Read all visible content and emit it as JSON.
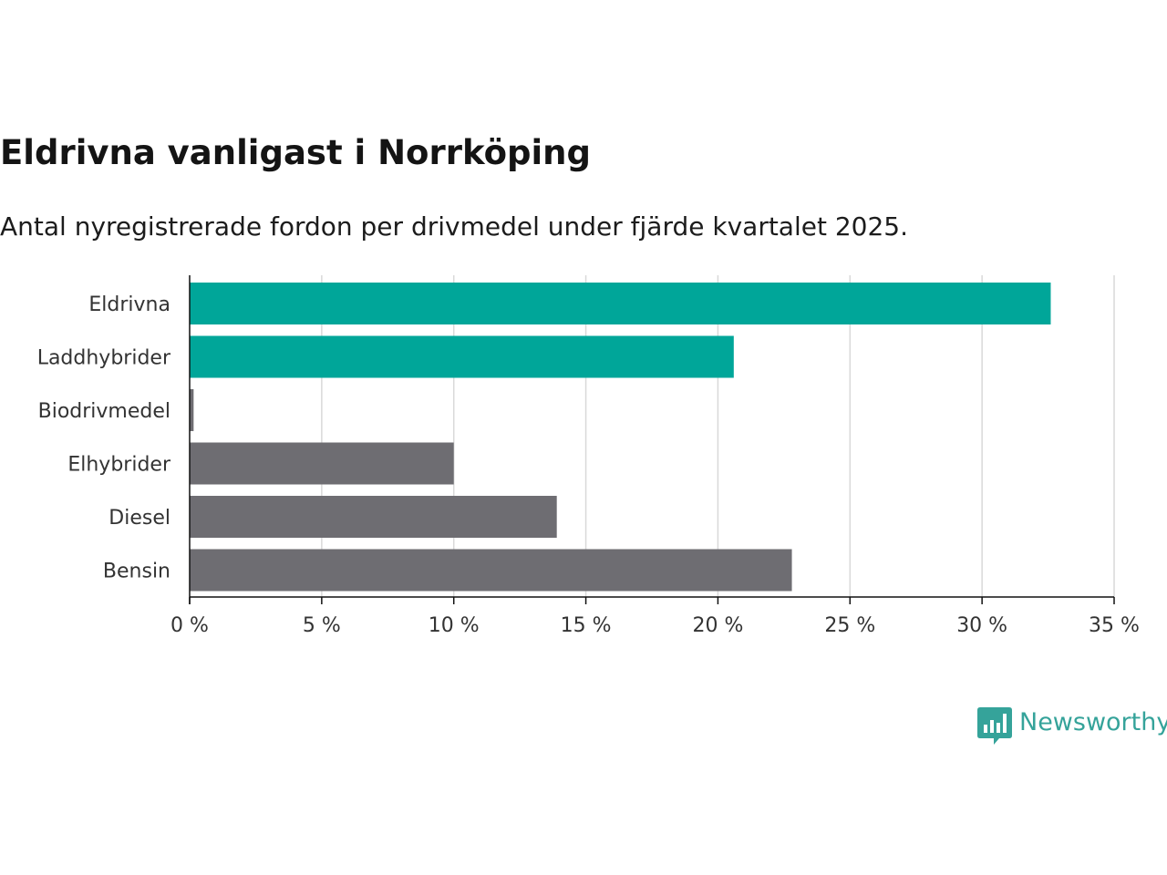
{
  "title": "Eldrivna vanligast i Norrköping",
  "subtitle": "Antal nyregistrerade fordon per drivmedel under fjärde kvartalet 2025.",
  "brand": {
    "name": "Newsworthy",
    "color": "#35a39a",
    "icon": "bar-chart-speech-bubble-icon"
  },
  "colors": {
    "highlight": "#00a699",
    "default": "#6e6d72",
    "grid": "#d9d9d9",
    "axis": "#111111"
  },
  "chart_data": {
    "type": "bar",
    "orientation": "horizontal",
    "title": "Eldrivna vanligast i Norrköping",
    "subtitle": "Antal nyregistrerade fordon per drivmedel under fjärde kvartalet 2025.",
    "categories": [
      "Eldrivna",
      "Laddhybrider",
      "Biodrivmedel",
      "Elhybrider",
      "Diesel",
      "Bensin"
    ],
    "values": [
      32.6,
      20.6,
      0.15,
      10.0,
      13.9,
      22.8
    ],
    "highlighted": [
      true,
      true,
      false,
      false,
      false,
      false
    ],
    "xlim": [
      0,
      35
    ],
    "xticks": [
      0,
      5,
      10,
      15,
      20,
      25,
      30,
      35
    ],
    "xtick_labels": [
      "0 %",
      "5 %",
      "10 %",
      "15 %",
      "20 %",
      "25 %",
      "30 %",
      "35 %"
    ],
    "xlabel": "",
    "ylabel": "",
    "grid": true,
    "unit": "%"
  }
}
